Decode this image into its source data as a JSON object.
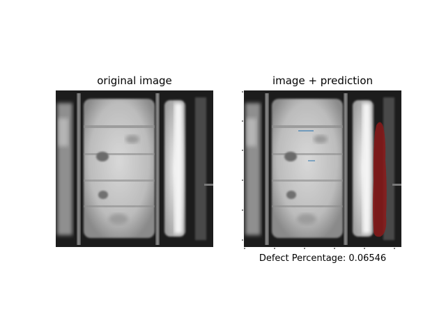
{
  "panels": {
    "left": {
      "title": "original image"
    },
    "right": {
      "title": "image + prediction",
      "xlabel": "Defect Percentage: 0.06546"
    }
  },
  "colors": {
    "background": "#ffffff",
    "prediction_overlay": "#8b1a1a",
    "minor_prediction": "#5a8fb8"
  }
}
